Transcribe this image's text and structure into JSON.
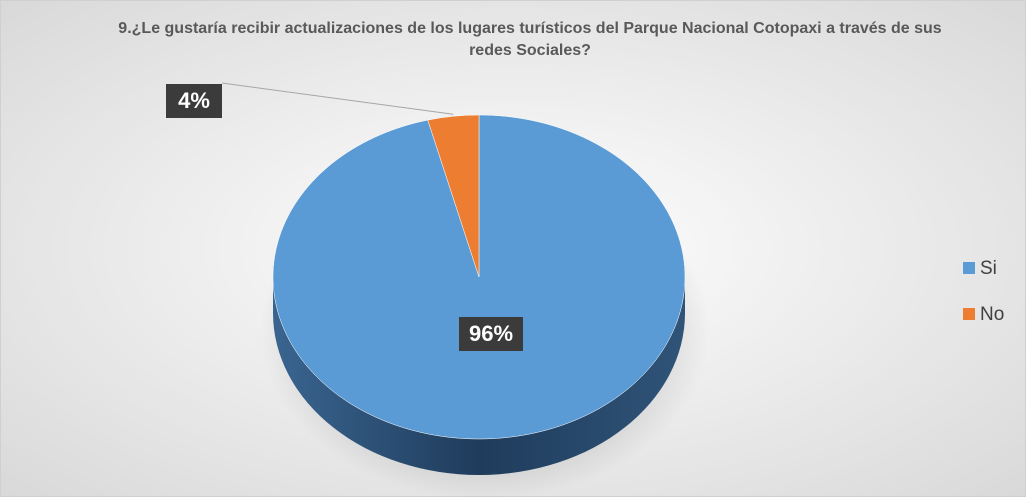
{
  "chart_data": {
    "type": "pie3d",
    "title": "9.¿Le gustaría recibir actualizaciones de los lugares turísticos del Parque Nacional Cotopaxi a través de sus redes Sociales?",
    "categories": [
      "Si",
      "No"
    ],
    "values": [
      96,
      4
    ],
    "value_labels": [
      "96%",
      "4%"
    ],
    "colors": [
      "#5b9bd5",
      "#ed7d31"
    ],
    "legend": "right"
  }
}
